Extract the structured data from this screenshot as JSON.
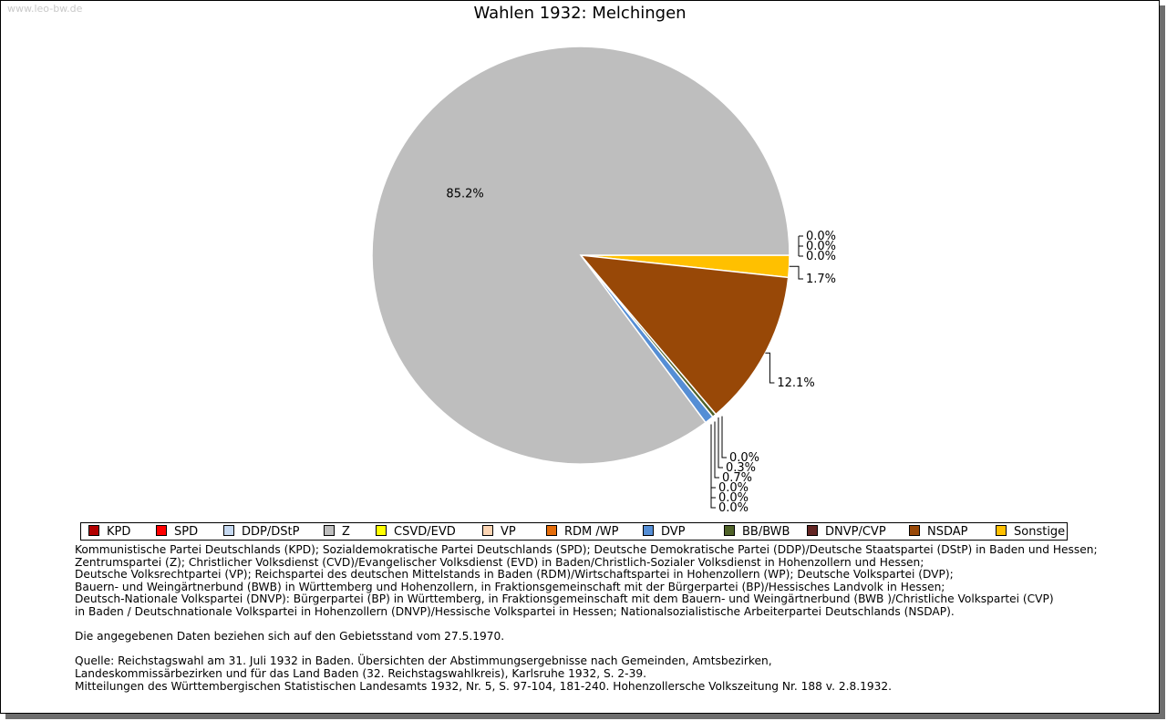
{
  "watermark": "www.leo-bw.de",
  "chart_data": {
    "type": "pie",
    "title": "Wahlen 1932: Melchingen",
    "slices": [
      {
        "name": "KPD",
        "value": 0.0,
        "label": "0.0%",
        "color": "#b30000"
      },
      {
        "name": "SPD",
        "value": 0.0,
        "label": "0.0%",
        "color": "#ff0000"
      },
      {
        "name": "DDP/DStP",
        "value": 0.0,
        "label": "0.0%",
        "color": "#c6d9f1"
      },
      {
        "name": "Z",
        "value": 85.2,
        "label": "85.2%",
        "color": "#bebebe"
      },
      {
        "name": "CSVD/EVD",
        "value": 0.0,
        "label": "0.0%",
        "color": "#ffff00"
      },
      {
        "name": "VP",
        "value": 0.0,
        "label": "0.0%",
        "color": "#fcd5b4"
      },
      {
        "name": "RDM /WP",
        "value": 0.0,
        "label": "0.0%",
        "color": "#e46c0a"
      },
      {
        "name": "DVP",
        "value": 0.7,
        "label": "0.7%",
        "color": "#558ed5"
      },
      {
        "name": "BB/BWB",
        "value": 0.3,
        "label": "0.3%",
        "color": "#4f6228"
      },
      {
        "name": "DNVP/CVP",
        "value": 0.0,
        "label": "0.0%",
        "color": "#632523"
      },
      {
        "name": "NSDAP",
        "value": 12.1,
        "label": "12.1%",
        "color": "#984807"
      },
      {
        "name": "Sonstige",
        "value": 1.7,
        "label": "1.7%",
        "color": "#ffc000"
      }
    ],
    "legend_position": "bottom"
  },
  "notes": [
    "Kommunistische Partei Deutschlands (KPD); Sozialdemokratische Partei Deutschlands (SPD); Deutsche Demokratische Partei (DDP)/Deutsche Staatspartei (DStP) in Baden und Hessen;",
    "Zentrumspartei (Z); Christlicher Volksdienst (CVD)/Evangelischer Volksdienst (EVD) in Baden/Christlich-Sozialer Volksdienst in Hohenzollern und Hessen;",
    "Deutsche Volksrechtpartei (VP); Reichspartei des deutschen Mittelstands in Baden (RDM)/Wirtschaftspartei in Hohenzollern (WP); Deutsche Volkspartei (DVP);",
    "Bauern- und Weingärtnerbund (BWB) in Württemberg und Hohenzollern, in Fraktionsgemeinschaft mit der Bürgerpartei (BP)/Hessisches Landvolk in Hessen;",
    "Deutsch-Nationale Volkspartei (DNVP): Bürgerpartei (BP) in Württemberg, in Fraktionsgemeinschaft mit dem Bauern- und Weingärtnerbund (BWB )/Christliche Volkspartei (CVP)",
    "in Baden / Deutschnationale Volkspartei in Hohenzollern (DNVP)/Hessische Volkspartei in Hessen; Nationalsozialistische Arbeiterpartei Deutschlands (NSDAP).",
    "",
    "Die angegebenen Daten beziehen sich auf den Gebietsstand vom 27.5.1970.",
    "",
    "Quelle: Reichstagswahl am 31. Juli 1932 in Baden. Übersichten der Abstimmungsergebnisse nach Gemeinden, Amtsbezirken,",
    "Landeskommissärbezirken und für das Land Baden (32. Reichstagswahlkreis), Karlsruhe 1932, S. 2-39.",
    "Mitteilungen des Württembergischen Statistischen Landesamts 1932, Nr. 5, S. 97-104, 181-240. Hohenzollersche Volkszeitung Nr. 188 v. 2.8.1932."
  ]
}
